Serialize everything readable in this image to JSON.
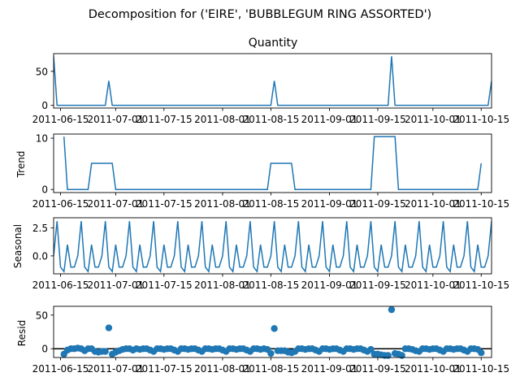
{
  "suptitle": "Decomposition for ('EIRE', 'BUBBLEGUM RING ASSORTED')",
  "x_tick_labels": [
    "2011-06-15",
    "2011-07-01",
    "2011-07-15",
    "2011-08-01",
    "2011-08-15",
    "2011-09-01",
    "2011-09-15",
    "2011-10-01",
    "2011-10-15"
  ],
  "colors": {
    "series": "#1f77b4",
    "axes": "#000000",
    "background": "#ffffff"
  },
  "chart_data": [
    {
      "type": "line",
      "title": "Quantity",
      "ylabel": "",
      "x_range": [
        "2011-06-13",
        "2011-10-18"
      ],
      "ylim": [
        -4,
        76
      ],
      "yticks": [
        0,
        50
      ],
      "grid": false,
      "points": [
        [
          "2011-06-13",
          72
        ],
        [
          "2011-06-14",
          0
        ],
        [
          "2011-06-28",
          0
        ],
        [
          "2011-06-29",
          36
        ],
        [
          "2011-06-30",
          0
        ],
        [
          "2011-08-15",
          0
        ],
        [
          "2011-08-16",
          36
        ],
        [
          "2011-08-17",
          0
        ],
        [
          "2011-09-18",
          0
        ],
        [
          "2011-09-19",
          72
        ],
        [
          "2011-09-20",
          0
        ],
        [
          "2011-10-17",
          0
        ],
        [
          "2011-10-18",
          36
        ]
      ]
    },
    {
      "type": "line",
      "title": "",
      "ylabel": "Trend",
      "x_range": [
        "2011-06-13",
        "2011-10-18"
      ],
      "ylim": [
        -0.6,
        10.8
      ],
      "yticks": [
        0,
        10
      ],
      "grid": false,
      "points": [
        [
          "2011-06-16",
          10.3
        ],
        [
          "2011-06-17",
          0
        ],
        [
          "2011-06-23",
          0
        ],
        [
          "2011-06-24",
          5.1
        ],
        [
          "2011-06-30",
          5.1
        ],
        [
          "2011-07-01",
          0
        ],
        [
          "2011-08-14",
          0
        ],
        [
          "2011-08-15",
          5.1
        ],
        [
          "2011-08-21",
          5.1
        ],
        [
          "2011-08-22",
          0
        ],
        [
          "2011-09-13",
          0
        ],
        [
          "2011-09-14",
          10.3
        ],
        [
          "2011-09-20",
          10.3
        ],
        [
          "2011-09-21",
          0
        ],
        [
          "2011-10-14",
          0
        ],
        [
          "2011-10-15",
          5.1
        ]
      ]
    },
    {
      "type": "line",
      "title": "",
      "ylabel": "Seasonal",
      "x_range": [
        "2011-06-13",
        "2011-10-18"
      ],
      "ylim": [
        -1.6,
        3.4
      ],
      "yticks": [
        -0.0,
        2.5
      ],
      "ytick_labels": [
        "0.0",
        "2.5"
      ],
      "grid": false,
      "period": 7,
      "start": "2011-06-13",
      "end": "2011-10-18",
      "cycle": [
        0.0,
        3.1,
        -1.0,
        -1.4,
        1.0,
        -1.0,
        -1.0
      ]
    },
    {
      "type": "scatter",
      "title": "",
      "ylabel": "Resid",
      "x_range": [
        "2011-06-13",
        "2011-10-18"
      ],
      "ylim": [
        -13,
        63
      ],
      "yticks": [
        0,
        50
      ],
      "grid": false,
      "zero_line": true,
      "points": [
        [
          "2011-06-16",
          -8
        ],
        [
          "2011-06-17",
          -2
        ],
        [
          "2011-06-18",
          0
        ],
        [
          "2011-06-19",
          0
        ],
        [
          "2011-06-20",
          1
        ],
        [
          "2011-06-21",
          0
        ],
        [
          "2011-06-22",
          -3
        ],
        [
          "2011-06-23",
          0
        ],
        [
          "2011-06-24",
          0
        ],
        [
          "2011-06-25",
          -4
        ],
        [
          "2011-06-26",
          -5
        ],
        [
          "2011-06-27",
          -4
        ],
        [
          "2011-06-28",
          -4
        ],
        [
          "2011-06-29",
          31
        ],
        [
          "2011-06-30",
          -8
        ],
        [
          "2011-07-01",
          -5
        ],
        [
          "2011-07-02",
          -3
        ],
        [
          "2011-07-03",
          -1
        ],
        [
          "2011-07-04",
          0
        ],
        [
          "2011-07-05",
          0
        ],
        [
          "2011-07-06",
          -2
        ],
        [
          "2011-07-07",
          0
        ],
        [
          "2011-07-08",
          -1
        ],
        [
          "2011-07-09",
          0
        ],
        [
          "2011-07-10",
          0
        ],
        [
          "2011-07-11",
          -2
        ],
        [
          "2011-07-12",
          -4
        ],
        [
          "2011-07-13",
          0
        ],
        [
          "2011-07-14",
          0
        ],
        [
          "2011-07-15",
          -1
        ],
        [
          "2011-07-16",
          0
        ],
        [
          "2011-07-17",
          0
        ],
        [
          "2011-07-18",
          -2
        ],
        [
          "2011-07-19",
          -4
        ],
        [
          "2011-07-20",
          0
        ],
        [
          "2011-07-21",
          0
        ],
        [
          "2011-07-22",
          -1
        ],
        [
          "2011-07-23",
          0
        ],
        [
          "2011-07-24",
          0
        ],
        [
          "2011-07-25",
          -2
        ],
        [
          "2011-07-26",
          -4
        ],
        [
          "2011-07-27",
          0
        ],
        [
          "2011-07-28",
          0
        ],
        [
          "2011-07-29",
          -1
        ],
        [
          "2011-07-30",
          0
        ],
        [
          "2011-07-31",
          0
        ],
        [
          "2011-08-01",
          -2
        ],
        [
          "2011-08-02",
          -4
        ],
        [
          "2011-08-03",
          0
        ],
        [
          "2011-08-04",
          0
        ],
        [
          "2011-08-05",
          -1
        ],
        [
          "2011-08-06",
          0
        ],
        [
          "2011-08-07",
          0
        ],
        [
          "2011-08-08",
          -2
        ],
        [
          "2011-08-09",
          -4
        ],
        [
          "2011-08-10",
          0
        ],
        [
          "2011-08-11",
          0
        ],
        [
          "2011-08-12",
          -1
        ],
        [
          "2011-08-13",
          0
        ],
        [
          "2011-08-14",
          -1
        ],
        [
          "2011-08-15",
          -7
        ],
        [
          "2011-08-16",
          30
        ],
        [
          "2011-08-17",
          -3
        ],
        [
          "2011-08-18",
          -3
        ],
        [
          "2011-08-19",
          -3
        ],
        [
          "2011-08-20",
          -5
        ],
        [
          "2011-08-21",
          -6
        ],
        [
          "2011-08-22",
          -4
        ],
        [
          "2011-08-23",
          0
        ],
        [
          "2011-08-24",
          0
        ],
        [
          "2011-08-25",
          -1
        ],
        [
          "2011-08-26",
          0
        ],
        [
          "2011-08-27",
          0
        ],
        [
          "2011-08-28",
          -2
        ],
        [
          "2011-08-29",
          -4
        ],
        [
          "2011-08-30",
          0
        ],
        [
          "2011-08-31",
          0
        ],
        [
          "2011-09-01",
          -1
        ],
        [
          "2011-09-02",
          0
        ],
        [
          "2011-09-03",
          0
        ],
        [
          "2011-09-04",
          -2
        ],
        [
          "2011-09-05",
          -4
        ],
        [
          "2011-09-06",
          0
        ],
        [
          "2011-09-07",
          0
        ],
        [
          "2011-09-08",
          -1
        ],
        [
          "2011-09-09",
          0
        ],
        [
          "2011-09-10",
          0
        ],
        [
          "2011-09-11",
          -2
        ],
        [
          "2011-09-12",
          -4
        ],
        [
          "2011-09-13",
          -1
        ],
        [
          "2011-09-14",
          -8
        ],
        [
          "2011-09-15",
          -8
        ],
        [
          "2011-09-16",
          -9
        ],
        [
          "2011-09-17",
          -10
        ],
        [
          "2011-09-18",
          -10
        ],
        [
          "2011-09-19",
          58
        ],
        [
          "2011-09-20",
          -7
        ],
        [
          "2011-09-21",
          -8
        ],
        [
          "2011-09-22",
          -10
        ],
        [
          "2011-09-23",
          0
        ],
        [
          "2011-09-24",
          0
        ],
        [
          "2011-09-25",
          -1
        ],
        [
          "2011-09-26",
          -3
        ],
        [
          "2011-09-27",
          -4
        ],
        [
          "2011-09-28",
          0
        ],
        [
          "2011-09-29",
          0
        ],
        [
          "2011-09-30",
          -1
        ],
        [
          "2011-10-01",
          0
        ],
        [
          "2011-10-02",
          0
        ],
        [
          "2011-10-03",
          -2
        ],
        [
          "2011-10-04",
          -4
        ],
        [
          "2011-10-05",
          0
        ],
        [
          "2011-10-06",
          0
        ],
        [
          "2011-10-07",
          -1
        ],
        [
          "2011-10-08",
          0
        ],
        [
          "2011-10-09",
          0
        ],
        [
          "2011-10-10",
          -2
        ],
        [
          "2011-10-11",
          -4
        ],
        [
          "2011-10-12",
          0
        ],
        [
          "2011-10-13",
          0
        ],
        [
          "2011-10-14",
          -1
        ],
        [
          "2011-10-15",
          -6
        ]
      ]
    }
  ]
}
